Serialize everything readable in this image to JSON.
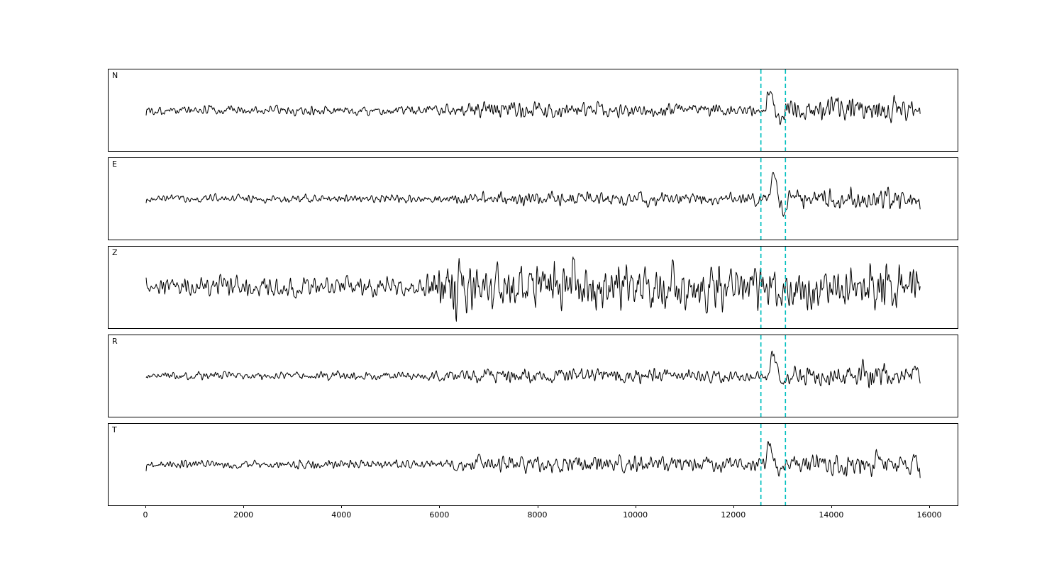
{
  "figure": {
    "background": "#ffffff"
  },
  "chart_data": {
    "type": "line",
    "title": "",
    "xlabel": "",
    "ylabel": "",
    "description": "Five-component seismogram (N, E, Z, R, T) with two cyan dashed pick lines",
    "x_range": [
      -770,
      16560
    ],
    "x_ticks": [
      0,
      2000,
      4000,
      6000,
      8000,
      10000,
      12000,
      14000,
      16000
    ],
    "x_tick_labels": [
      "0",
      "2000",
      "4000",
      "6000",
      "8000",
      "10000",
      "12000",
      "14000",
      "16000"
    ],
    "trace_x_start": 0,
    "trace_x_end": 15800,
    "n_points": 1700,
    "trace_color": "#000000",
    "pick_lines": {
      "color": "#00bfbf",
      "style": "dashed",
      "x_values": [
        12550,
        13050
      ]
    },
    "panels": [
      {
        "label": "N",
        "seed": 101,
        "noise_envelope": [
          [
            0,
            5
          ],
          [
            5800,
            5.5
          ],
          [
            6300,
            9
          ],
          [
            7600,
            11
          ],
          [
            8300,
            9
          ],
          [
            9000,
            8
          ],
          [
            12000,
            7
          ],
          [
            12450,
            7
          ],
          [
            12700,
            9
          ],
          [
            13100,
            12
          ],
          [
            13600,
            11
          ],
          [
            14100,
            17
          ],
          [
            14800,
            13
          ],
          [
            15300,
            16
          ],
          [
            15800,
            10
          ]
        ],
        "event": {
          "time": 12620,
          "amp": 48,
          "freq": 0.0022,
          "decay": 0.0045
        }
      },
      {
        "label": "E",
        "seed": 202,
        "noise_envelope": [
          [
            0,
            4
          ],
          [
            6000,
            4.5
          ],
          [
            6500,
            6
          ],
          [
            8000,
            7
          ],
          [
            9000,
            8
          ],
          [
            10500,
            7
          ],
          [
            12400,
            6
          ],
          [
            12800,
            8
          ],
          [
            13200,
            9
          ],
          [
            14000,
            12
          ],
          [
            14500,
            15
          ],
          [
            15100,
            13
          ],
          [
            15800,
            9
          ]
        ],
        "event": {
          "time": 12700,
          "amp": 55,
          "freq": 0.0022,
          "decay": 0.004
        }
      },
      {
        "label": "Z",
        "seed": 303,
        "noise_envelope": [
          [
            0,
            8
          ],
          [
            1500,
            12
          ],
          [
            3000,
            10
          ],
          [
            5500,
            11
          ],
          [
            6100,
            25
          ],
          [
            6400,
            38
          ],
          [
            6900,
            28
          ],
          [
            7500,
            30
          ],
          [
            8300,
            33
          ],
          [
            9000,
            26
          ],
          [
            9800,
            28
          ],
          [
            10800,
            22
          ],
          [
            11800,
            24
          ],
          [
            12800,
            20
          ],
          [
            13500,
            22
          ],
          [
            14500,
            24
          ],
          [
            15300,
            25
          ],
          [
            15800,
            18
          ]
        ],
        "event": {
          "time": 12650,
          "amp": 10,
          "freq": 0.002,
          "decay": 0.003
        }
      },
      {
        "label": "R",
        "seed": 404,
        "noise_envelope": [
          [
            0,
            4
          ],
          [
            6000,
            5
          ],
          [
            6700,
            7
          ],
          [
            8000,
            8
          ],
          [
            9500,
            8
          ],
          [
            11000,
            7
          ],
          [
            12400,
            6
          ],
          [
            13000,
            8
          ],
          [
            13800,
            10
          ],
          [
            14300,
            13
          ],
          [
            14900,
            16
          ],
          [
            15400,
            12
          ],
          [
            15800,
            9
          ]
        ],
        "event": {
          "time": 12680,
          "amp": 55,
          "freq": 0.0022,
          "decay": 0.0045
        }
      },
      {
        "label": "T",
        "seed": 505,
        "noise_envelope": [
          [
            0,
            5
          ],
          [
            6000,
            5
          ],
          [
            6400,
            8
          ],
          [
            7500,
            9
          ],
          [
            8500,
            10
          ],
          [
            9500,
            9
          ],
          [
            11000,
            8
          ],
          [
            12400,
            7
          ],
          [
            13000,
            9
          ],
          [
            13800,
            11
          ],
          [
            14300,
            13
          ],
          [
            15000,
            15
          ],
          [
            15500,
            13
          ],
          [
            15800,
            10
          ]
        ],
        "event": {
          "time": 12620,
          "amp": 50,
          "freq": 0.0022,
          "decay": 0.005
        }
      }
    ]
  }
}
